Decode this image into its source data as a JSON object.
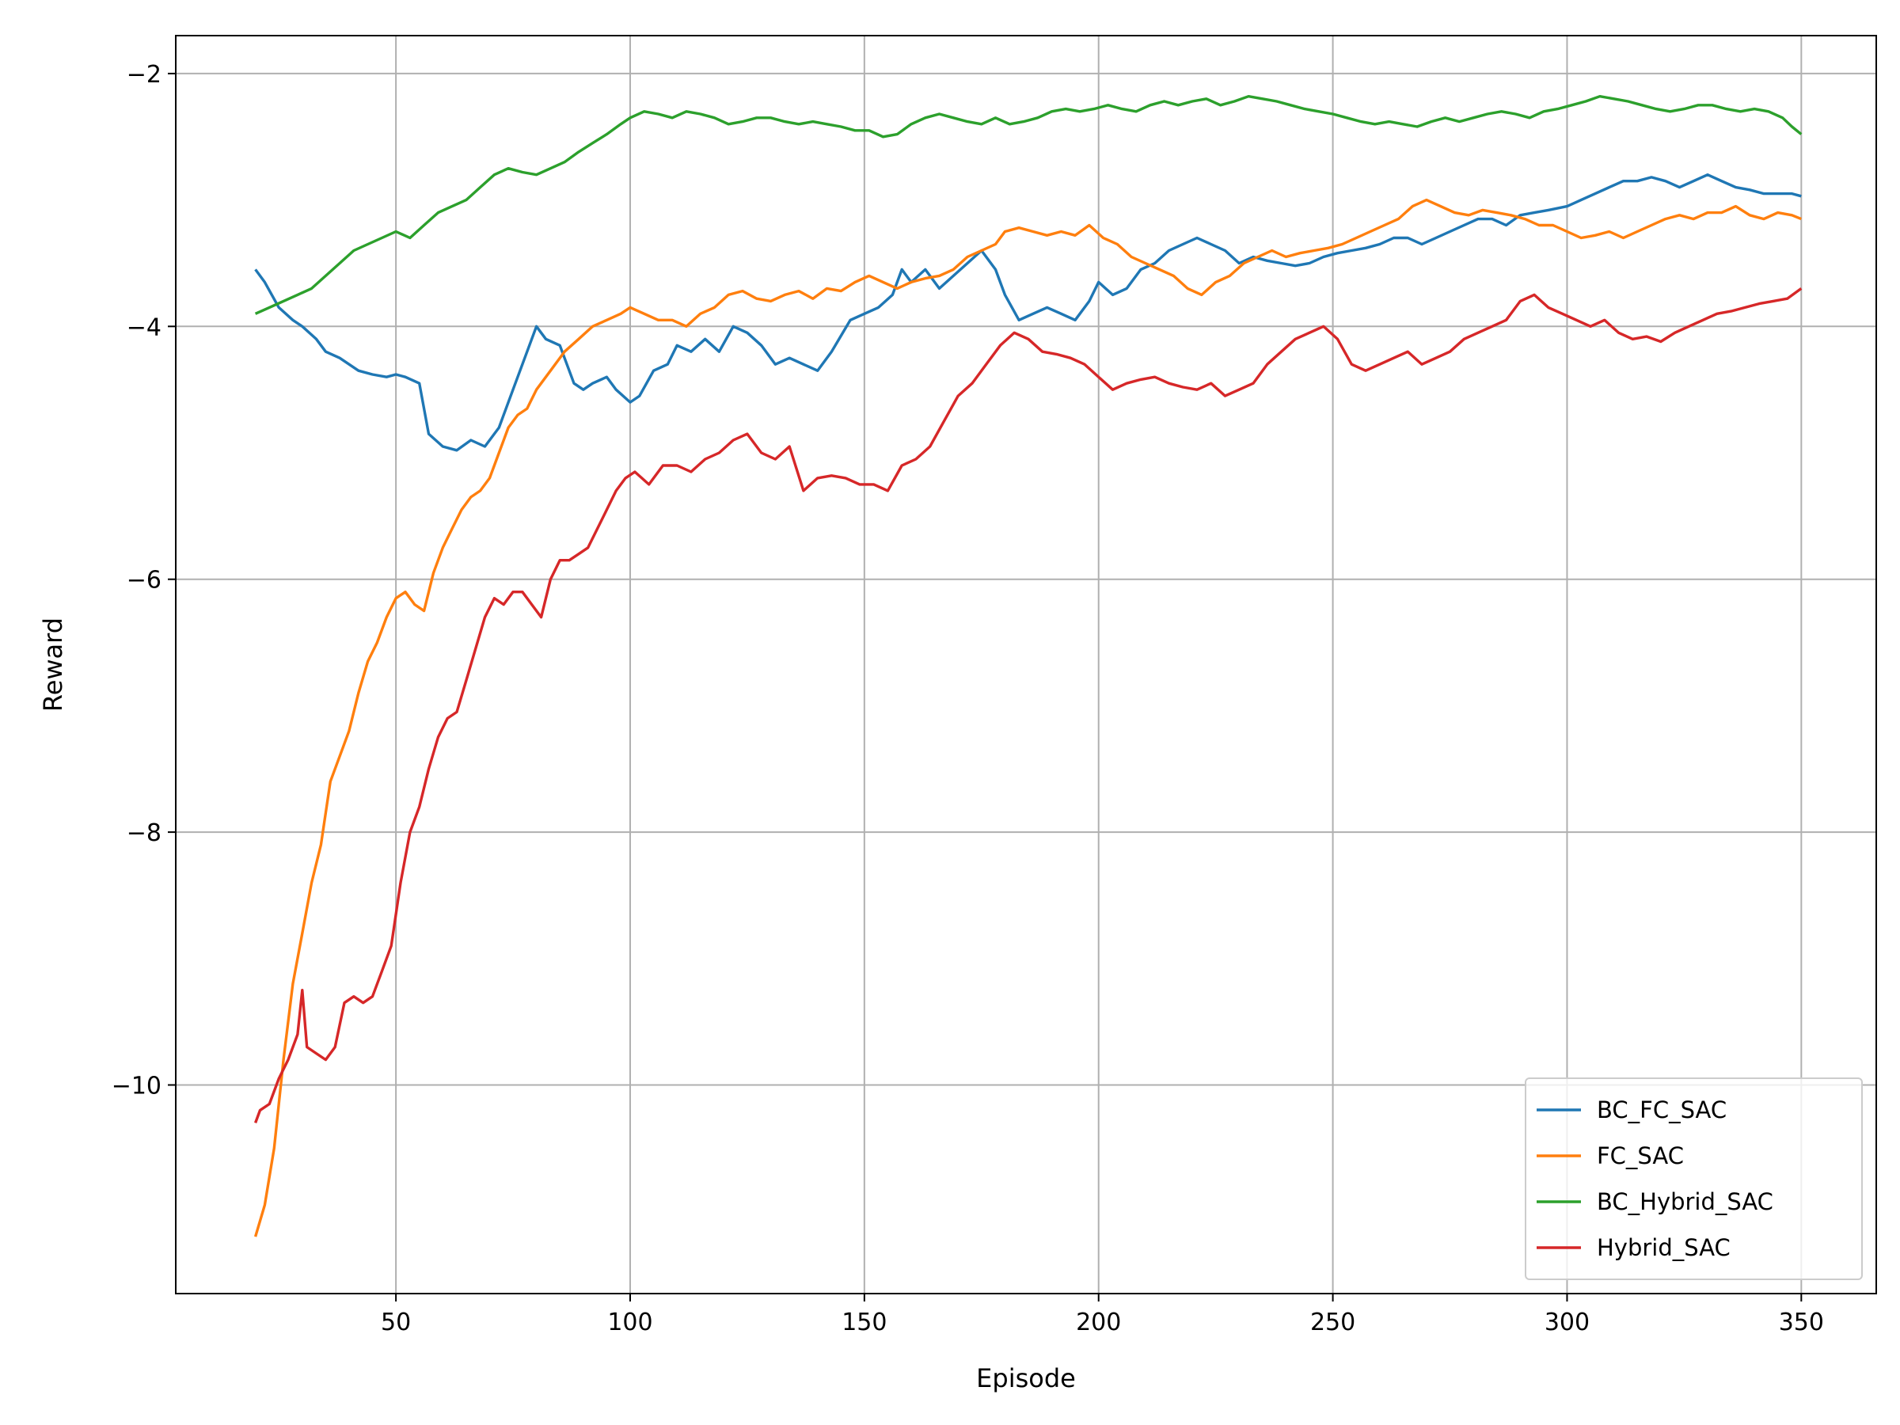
{
  "chart_data": {
    "type": "line",
    "title": "",
    "xlabel": "Episode",
    "ylabel": "Reward",
    "xlim": [
      3,
      366
    ],
    "ylim": [
      -11.65,
      -1.7
    ],
    "xticks": [
      50,
      100,
      150,
      200,
      250,
      300,
      350
    ],
    "yticks": [
      -10,
      -8,
      -6,
      -4,
      -2
    ],
    "grid": true,
    "legend_position": "lower-right",
    "series": [
      {
        "name": "BC_FC_SAC",
        "color": "#1f77b4",
        "x": [
          20,
          22,
          25,
          28,
          30,
          33,
          35,
          38,
          42,
          45,
          48,
          50,
          52,
          55,
          57,
          60,
          63,
          66,
          69,
          72,
          75,
          78,
          80,
          82,
          85,
          88,
          90,
          92,
          95,
          97,
          100,
          102,
          105,
          108,
          110,
          113,
          116,
          119,
          122,
          125,
          128,
          131,
          134,
          137,
          140,
          143,
          147,
          150,
          153,
          156,
          158,
          160,
          163,
          166,
          169,
          172,
          175,
          178,
          180,
          183,
          186,
          189,
          192,
          195,
          198,
          200,
          203,
          206,
          209,
          212,
          215,
          218,
          221,
          224,
          227,
          230,
          233,
          236,
          239,
          242,
          245,
          248,
          251,
          254,
          257,
          260,
          263,
          266,
          269,
          272,
          275,
          278,
          281,
          284,
          287,
          290,
          293,
          296,
          300,
          303,
          306,
          309,
          312,
          315,
          318,
          321,
          324,
          327,
          330,
          333,
          336,
          339,
          342,
          345,
          348,
          350
        ],
        "values": [
          -3.55,
          -3.65,
          -3.85,
          -3.95,
          -4.0,
          -4.1,
          -4.2,
          -4.25,
          -4.35,
          -4.38,
          -4.4,
          -4.38,
          -4.4,
          -4.45,
          -4.85,
          -4.95,
          -4.98,
          -4.9,
          -4.95,
          -4.8,
          -4.5,
          -4.2,
          -4.0,
          -4.1,
          -4.15,
          -4.45,
          -4.5,
          -4.45,
          -4.4,
          -4.5,
          -4.6,
          -4.55,
          -4.35,
          -4.3,
          -4.15,
          -4.2,
          -4.1,
          -4.2,
          -4.0,
          -4.05,
          -4.15,
          -4.3,
          -4.25,
          -4.3,
          -4.35,
          -4.2,
          -3.95,
          -3.9,
          -3.85,
          -3.75,
          -3.55,
          -3.65,
          -3.55,
          -3.7,
          -3.6,
          -3.5,
          -3.4,
          -3.55,
          -3.75,
          -3.95,
          -3.9,
          -3.85,
          -3.9,
          -3.95,
          -3.8,
          -3.65,
          -3.75,
          -3.7,
          -3.55,
          -3.5,
          -3.4,
          -3.35,
          -3.3,
          -3.35,
          -3.4,
          -3.5,
          -3.45,
          -3.48,
          -3.5,
          -3.52,
          -3.5,
          -3.45,
          -3.42,
          -3.4,
          -3.38,
          -3.35,
          -3.3,
          -3.3,
          -3.35,
          -3.3,
          -3.25,
          -3.2,
          -3.15,
          -3.15,
          -3.2,
          -3.12,
          -3.1,
          -3.08,
          -3.05,
          -3.0,
          -2.95,
          -2.9,
          -2.85,
          -2.85,
          -2.82,
          -2.85,
          -2.9,
          -2.85,
          -2.8,
          -2.85,
          -2.9,
          -2.92,
          -2.95,
          -2.95,
          -2.95,
          -2.97
        ]
      },
      {
        "name": "FC_SAC",
        "color": "#ff7f0e",
        "x": [
          20,
          22,
          24,
          26,
          28,
          30,
          32,
          34,
          36,
          38,
          40,
          42,
          44,
          46,
          48,
          50,
          52,
          54,
          56,
          58,
          60,
          62,
          64,
          66,
          68,
          70,
          72,
          74,
          76,
          78,
          80,
          83,
          86,
          89,
          92,
          95,
          98,
          100,
          103,
          106,
          109,
          112,
          115,
          118,
          121,
          124,
          127,
          130,
          133,
          136,
          139,
          142,
          145,
          148,
          151,
          154,
          157,
          160,
          163,
          166,
          169,
          172,
          175,
          178,
          180,
          183,
          186,
          189,
          192,
          195,
          198,
          201,
          204,
          207,
          210,
          213,
          216,
          219,
          222,
          225,
          228,
          231,
          234,
          237,
          240,
          243,
          246,
          249,
          252,
          255,
          258,
          261,
          264,
          267,
          270,
          273,
          276,
          279,
          282,
          285,
          288,
          291,
          294,
          297,
          300,
          303,
          306,
          309,
          312,
          315,
          318,
          321,
          324,
          327,
          330,
          333,
          336,
          339,
          342,
          345,
          348,
          350
        ],
        "values": [
          -11.2,
          -10.95,
          -10.5,
          -9.8,
          -9.2,
          -8.8,
          -8.4,
          -8.1,
          -7.6,
          -7.4,
          -7.2,
          -6.9,
          -6.65,
          -6.5,
          -6.3,
          -6.15,
          -6.1,
          -6.2,
          -6.25,
          -5.95,
          -5.75,
          -5.6,
          -5.45,
          -5.35,
          -5.3,
          -5.2,
          -5.0,
          -4.8,
          -4.7,
          -4.65,
          -4.5,
          -4.35,
          -4.2,
          -4.1,
          -4.0,
          -3.95,
          -3.9,
          -3.85,
          -3.9,
          -3.95,
          -3.95,
          -4.0,
          -3.9,
          -3.85,
          -3.75,
          -3.72,
          -3.78,
          -3.8,
          -3.75,
          -3.72,
          -3.78,
          -3.7,
          -3.72,
          -3.65,
          -3.6,
          -3.65,
          -3.7,
          -3.65,
          -3.62,
          -3.6,
          -3.55,
          -3.45,
          -3.4,
          -3.35,
          -3.25,
          -3.22,
          -3.25,
          -3.28,
          -3.25,
          -3.28,
          -3.2,
          -3.3,
          -3.35,
          -3.45,
          -3.5,
          -3.55,
          -3.6,
          -3.7,
          -3.75,
          -3.65,
          -3.6,
          -3.5,
          -3.45,
          -3.4,
          -3.45,
          -3.42,
          -3.4,
          -3.38,
          -3.35,
          -3.3,
          -3.25,
          -3.2,
          -3.15,
          -3.05,
          -3.0,
          -3.05,
          -3.1,
          -3.12,
          -3.08,
          -3.1,
          -3.12,
          -3.15,
          -3.2,
          -3.2,
          -3.25,
          -3.3,
          -3.28,
          -3.25,
          -3.3,
          -3.25,
          -3.2,
          -3.15,
          -3.12,
          -3.15,
          -3.1,
          -3.1,
          -3.05,
          -3.12,
          -3.15,
          -3.1,
          -3.12,
          -3.15
        ]
      },
      {
        "name": "BC_Hybrid_SAC",
        "color": "#2ca02c",
        "x": [
          20,
          23,
          26,
          29,
          32,
          35,
          38,
          41,
          44,
          47,
          50,
          53,
          56,
          59,
          62,
          65,
          68,
          71,
          74,
          77,
          80,
          83,
          86,
          89,
          92,
          95,
          98,
          100,
          103,
          106,
          109,
          112,
          115,
          118,
          121,
          124,
          127,
          130,
          133,
          136,
          139,
          142,
          145,
          148,
          151,
          154,
          157,
          160,
          163,
          166,
          169,
          172,
          175,
          178,
          181,
          184,
          187,
          190,
          193,
          196,
          199,
          202,
          205,
          208,
          211,
          214,
          217,
          220,
          223,
          226,
          229,
          232,
          235,
          238,
          241,
          244,
          247,
          250,
          253,
          256,
          259,
          262,
          265,
          268,
          271,
          274,
          277,
          280,
          283,
          286,
          289,
          292,
          295,
          298,
          301,
          304,
          307,
          310,
          313,
          316,
          319,
          322,
          325,
          328,
          331,
          334,
          337,
          340,
          343,
          346,
          348,
          350
        ],
        "values": [
          -3.9,
          -3.85,
          -3.8,
          -3.75,
          -3.7,
          -3.6,
          -3.5,
          -3.4,
          -3.35,
          -3.3,
          -3.25,
          -3.3,
          -3.2,
          -3.1,
          -3.05,
          -3.0,
          -2.9,
          -2.8,
          -2.75,
          -2.78,
          -2.8,
          -2.75,
          -2.7,
          -2.62,
          -2.55,
          -2.48,
          -2.4,
          -2.35,
          -2.3,
          -2.32,
          -2.35,
          -2.3,
          -2.32,
          -2.35,
          -2.4,
          -2.38,
          -2.35,
          -2.35,
          -2.38,
          -2.4,
          -2.38,
          -2.4,
          -2.42,
          -2.45,
          -2.45,
          -2.5,
          -2.48,
          -2.4,
          -2.35,
          -2.32,
          -2.35,
          -2.38,
          -2.4,
          -2.35,
          -2.4,
          -2.38,
          -2.35,
          -2.3,
          -2.28,
          -2.3,
          -2.28,
          -2.25,
          -2.28,
          -2.3,
          -2.25,
          -2.22,
          -2.25,
          -2.22,
          -2.2,
          -2.25,
          -2.22,
          -2.18,
          -2.2,
          -2.22,
          -2.25,
          -2.28,
          -2.3,
          -2.32,
          -2.35,
          -2.38,
          -2.4,
          -2.38,
          -2.4,
          -2.42,
          -2.38,
          -2.35,
          -2.38,
          -2.35,
          -2.32,
          -2.3,
          -2.32,
          -2.35,
          -2.3,
          -2.28,
          -2.25,
          -2.22,
          -2.18,
          -2.2,
          -2.22,
          -2.25,
          -2.28,
          -2.3,
          -2.28,
          -2.25,
          -2.25,
          -2.28,
          -2.3,
          -2.28,
          -2.3,
          -2.35,
          -2.42,
          -2.48
        ]
      },
      {
        "name": "Hybrid_SAC",
        "color": "#d62728",
        "x": [
          20,
          21,
          23,
          25,
          27,
          29,
          30,
          31,
          33,
          35,
          37,
          39,
          41,
          43,
          45,
          47,
          49,
          51,
          53,
          55,
          57,
          59,
          61,
          63,
          65,
          67,
          69,
          71,
          73,
          75,
          77,
          79,
          81,
          83,
          85,
          87,
          89,
          91,
          93,
          95,
          97,
          99,
          101,
          104,
          107,
          110,
          113,
          116,
          119,
          122,
          125,
          128,
          131,
          134,
          137,
          140,
          143,
          146,
          149,
          152,
          155,
          158,
          161,
          164,
          167,
          170,
          173,
          176,
          179,
          182,
          185,
          188,
          191,
          194,
          197,
          200,
          203,
          206,
          209,
          212,
          215,
          218,
          221,
          224,
          227,
          230,
          233,
          236,
          239,
          242,
          245,
          248,
          251,
          254,
          257,
          260,
          263,
          266,
          269,
          272,
          275,
          278,
          281,
          284,
          287,
          290,
          293,
          296,
          299,
          302,
          305,
          308,
          311,
          314,
          317,
          320,
          323,
          326,
          329,
          332,
          335,
          338,
          341,
          344,
          347,
          350
        ],
        "values": [
          -10.3,
          -10.2,
          -10.15,
          -9.95,
          -9.8,
          -9.6,
          -9.25,
          -9.7,
          -9.75,
          -9.8,
          -9.7,
          -9.35,
          -9.3,
          -9.35,
          -9.3,
          -9.1,
          -8.9,
          -8.4,
          -8.0,
          -7.8,
          -7.5,
          -7.25,
          -7.1,
          -7.05,
          -6.8,
          -6.55,
          -6.3,
          -6.15,
          -6.2,
          -6.1,
          -6.1,
          -6.2,
          -6.3,
          -6.0,
          -5.85,
          -5.85,
          -5.8,
          -5.75,
          -5.6,
          -5.45,
          -5.3,
          -5.2,
          -5.15,
          -5.25,
          -5.1,
          -5.1,
          -5.15,
          -5.05,
          -5.0,
          -4.9,
          -4.85,
          -5.0,
          -5.05,
          -4.95,
          -5.3,
          -5.2,
          -5.18,
          -5.2,
          -5.25,
          -5.25,
          -5.3,
          -5.1,
          -5.05,
          -4.95,
          -4.75,
          -4.55,
          -4.45,
          -4.3,
          -4.15,
          -4.05,
          -4.1,
          -4.2,
          -4.22,
          -4.25,
          -4.3,
          -4.4,
          -4.5,
          -4.45,
          -4.42,
          -4.4,
          -4.45,
          -4.48,
          -4.5,
          -4.45,
          -4.55,
          -4.5,
          -4.45,
          -4.3,
          -4.2,
          -4.1,
          -4.05,
          -4.0,
          -4.1,
          -4.3,
          -4.35,
          -4.3,
          -4.25,
          -4.2,
          -4.3,
          -4.25,
          -4.2,
          -4.1,
          -4.05,
          -4.0,
          -3.95,
          -3.8,
          -3.75,
          -3.85,
          -3.9,
          -3.95,
          -4.0,
          -3.95,
          -4.05,
          -4.1,
          -4.08,
          -4.12,
          -4.05,
          -4.0,
          -3.95,
          -3.9,
          -3.88,
          -3.85,
          -3.82,
          -3.8,
          -3.78,
          -3.7
        ]
      }
    ]
  }
}
